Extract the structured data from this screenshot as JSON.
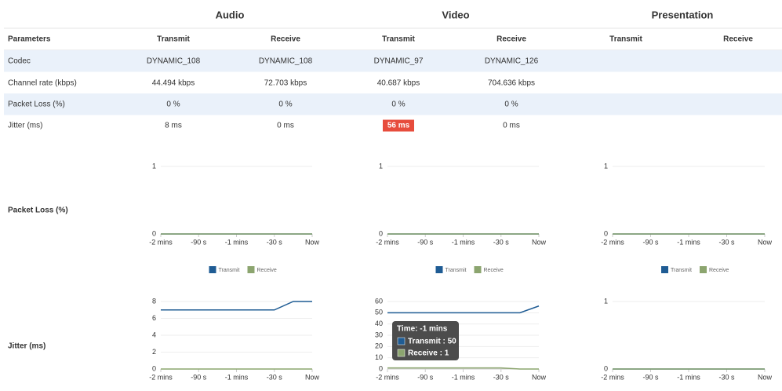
{
  "table": {
    "groups": [
      "Audio",
      "Video",
      "Presentation"
    ],
    "columns": [
      "Parameters",
      "Transmit",
      "Receive",
      "Transmit",
      "Receive",
      "Transmit",
      "Receive"
    ],
    "rows": [
      [
        "Codec",
        "DYNAMIC_108",
        "DYNAMIC_108",
        "DYNAMIC_97",
        "DYNAMIC_126"
      ],
      [
        "Channel rate (kbps)",
        "44.494 kbps",
        "72.703 kbps",
        "40.687 kbps",
        "704.636 kbps"
      ],
      [
        "Packet Loss (%)",
        "0 %",
        "0 %",
        "0 %",
        "0 %"
      ],
      [
        "Jitter (ms)",
        "8 ms",
        "0 ms",
        "56 ms",
        "0 ms"
      ]
    ],
    "highlight": {
      "row": 3,
      "col": 3,
      "color": "#e74c3c"
    }
  },
  "chart_rows": [
    "Packet Loss (%)",
    "Jitter (ms)"
  ],
  "chart_data": [
    {
      "type": "line",
      "x": [
        -120,
        -105,
        -90,
        -75,
        -60,
        -45,
        -30,
        -15,
        0
      ],
      "xlim": [
        -120,
        0
      ],
      "xticks": [
        {
          "value": -120,
          "label": "-2 mins"
        },
        {
          "value": -90,
          "label": "-90 s"
        },
        {
          "value": -60,
          "label": "-1 mins"
        },
        {
          "value": -30,
          "label": "-30 s"
        },
        {
          "value": 0,
          "label": "Now"
        }
      ],
      "ylim": [
        0,
        1
      ],
      "yticks": [
        0,
        1
      ],
      "legend": true,
      "series": [
        {
          "name": "Transmit",
          "color": "#1f5c94",
          "values": [
            0,
            0,
            0,
            0,
            0,
            0,
            0,
            0,
            0
          ]
        },
        {
          "name": "Receive",
          "color": "#8ca56f",
          "values": [
            0,
            0,
            0,
            0,
            0,
            0,
            0,
            0,
            0
          ]
        }
      ]
    },
    {
      "type": "line",
      "x": [
        -120,
        -105,
        -90,
        -75,
        -60,
        -45,
        -30,
        -15,
        0
      ],
      "xlim": [
        -120,
        0
      ],
      "xticks": [
        {
          "value": -120,
          "label": "-2 mins"
        },
        {
          "value": -90,
          "label": "-90 s"
        },
        {
          "value": -60,
          "label": "-1 mins"
        },
        {
          "value": -30,
          "label": "-30 s"
        },
        {
          "value": 0,
          "label": "Now"
        }
      ],
      "ylim": [
        0,
        1
      ],
      "yticks": [
        0,
        1
      ],
      "legend": true,
      "series": [
        {
          "name": "Transmit",
          "color": "#1f5c94",
          "values": [
            0,
            0,
            0,
            0,
            0,
            0,
            0,
            0,
            0
          ]
        },
        {
          "name": "Receive",
          "color": "#8ca56f",
          "values": [
            0,
            0,
            0,
            0,
            0,
            0,
            0,
            0,
            0
          ]
        }
      ]
    },
    {
      "type": "line",
      "x": [
        -120,
        -105,
        -90,
        -75,
        -60,
        -45,
        -30,
        -15,
        0
      ],
      "xlim": [
        -120,
        0
      ],
      "xticks": [
        {
          "value": -120,
          "label": "-2 mins"
        },
        {
          "value": -90,
          "label": "-90 s"
        },
        {
          "value": -60,
          "label": "-1 mins"
        },
        {
          "value": -30,
          "label": "-30 s"
        },
        {
          "value": 0,
          "label": "Now"
        }
      ],
      "ylim": [
        0,
        1
      ],
      "yticks": [
        0,
        1
      ],
      "legend": true,
      "series": [
        {
          "name": "Transmit",
          "color": "#1f5c94",
          "values": [
            0,
            0,
            0,
            0,
            0,
            0,
            0,
            0,
            0
          ]
        },
        {
          "name": "Receive",
          "color": "#8ca56f",
          "values": [
            0,
            0,
            0,
            0,
            0,
            0,
            0,
            0,
            0
          ]
        }
      ]
    },
    {
      "type": "line",
      "x": [
        -120,
        -105,
        -90,
        -75,
        -60,
        -45,
        -30,
        -15,
        0
      ],
      "xlim": [
        -120,
        0
      ],
      "xticks": [
        {
          "value": -120,
          "label": "-2 mins"
        },
        {
          "value": -90,
          "label": "-90 s"
        },
        {
          "value": -60,
          "label": "-1 mins"
        },
        {
          "value": -30,
          "label": "-30 s"
        },
        {
          "value": 0,
          "label": "Now"
        }
      ],
      "ylim": [
        0,
        8
      ],
      "yticks": [
        0,
        2,
        4,
        6,
        8
      ],
      "legend": false,
      "series": [
        {
          "name": "Transmit",
          "color": "#1f5c94",
          "values": [
            7,
            7,
            7,
            7,
            7,
            7,
            7,
            8,
            8
          ]
        },
        {
          "name": "Receive",
          "color": "#8ca56f",
          "values": [
            0,
            0,
            0,
            0,
            0,
            0,
            0,
            0,
            0
          ]
        }
      ]
    },
    {
      "type": "line",
      "x": [
        -120,
        -105,
        -90,
        -75,
        -60,
        -45,
        -30,
        -15,
        0
      ],
      "xlim": [
        -120,
        0
      ],
      "xticks": [
        {
          "value": -120,
          "label": "-2 mins"
        },
        {
          "value": -90,
          "label": "-90 s"
        },
        {
          "value": -60,
          "label": "-1 mins"
        },
        {
          "value": -30,
          "label": "-30 s"
        },
        {
          "value": 0,
          "label": "Now"
        }
      ],
      "ylim": [
        0,
        60
      ],
      "yticks": [
        0,
        10,
        20,
        30,
        40,
        50,
        60
      ],
      "legend": false,
      "series": [
        {
          "name": "Transmit",
          "color": "#1f5c94",
          "values": [
            50,
            50,
            50,
            50,
            50,
            50,
            50,
            50,
            56
          ]
        },
        {
          "name": "Receive",
          "color": "#8ca56f",
          "values": [
            1,
            1,
            1,
            1,
            1,
            1,
            1,
            0,
            0
          ]
        }
      ],
      "tooltip": {
        "title": "Time: -1 mins",
        "lines": [
          "Transmit : 50",
          "Receive : 1"
        ]
      }
    },
    {
      "type": "line",
      "x": [
        -120,
        -105,
        -90,
        -75,
        -60,
        -45,
        -30,
        -15,
        0
      ],
      "xlim": [
        -120,
        0
      ],
      "xticks": [
        {
          "value": -120,
          "label": "-2 mins"
        },
        {
          "value": -90,
          "label": "-90 s"
        },
        {
          "value": -60,
          "label": "-1 mins"
        },
        {
          "value": -30,
          "label": "-30 s"
        },
        {
          "value": 0,
          "label": "Now"
        }
      ],
      "ylim": [
        0,
        1
      ],
      "yticks": [
        0,
        1
      ],
      "legend": false,
      "series": [
        {
          "name": "Transmit",
          "color": "#1f5c94",
          "values": [
            0,
            0,
            0,
            0,
            0,
            0,
            0,
            0,
            0
          ]
        },
        {
          "name": "Receive",
          "color": "#8ca56f",
          "values": [
            0,
            0,
            0,
            0,
            0,
            0,
            0,
            0,
            0
          ]
        }
      ]
    }
  ]
}
